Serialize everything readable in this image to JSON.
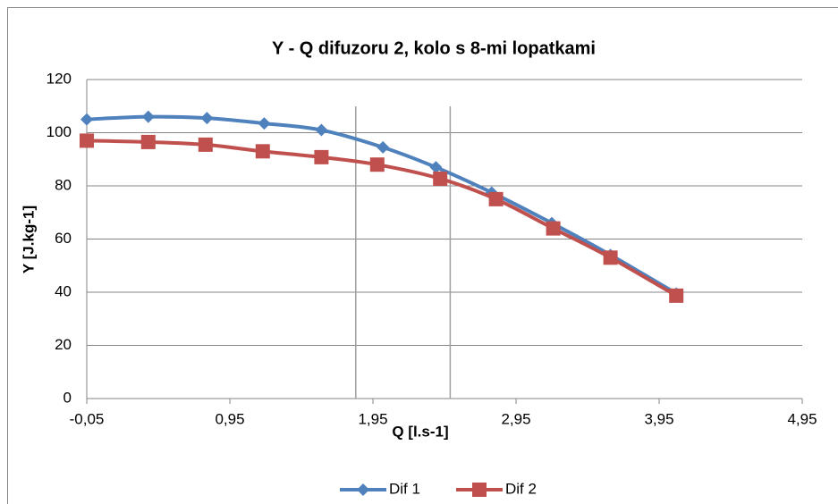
{
  "chart_data": {
    "type": "scatter",
    "title": "Y - Q difuzoru 2, kolo s 8-mi lopatkami",
    "xlabel": "Q [l.s-1]",
    "ylabel": "Y [J.kg-1]",
    "xlim": [
      -0.05,
      4.95
    ],
    "xticks": [
      {
        "value": -0.05,
        "label": "-0,05"
      },
      {
        "value": 0.95,
        "label": "0,95"
      },
      {
        "value": 1.95,
        "label": "1,95"
      },
      {
        "value": 2.95,
        "label": "2,95"
      },
      {
        "value": 3.95,
        "label": "3,95"
      },
      {
        "value": 4.95,
        "label": "4,95"
      }
    ],
    "ylim": [
      0,
      120
    ],
    "yticks": [
      0,
      20,
      40,
      60,
      80,
      100,
      120
    ],
    "grid": true,
    "reference_lines_x": [
      1.83,
      2.49
    ],
    "legend": "bottom",
    "series": [
      {
        "name": "Dif 1",
        "color": "#4f81bd",
        "marker": "diamond",
        "x": [
          -0.05,
          0.38,
          0.79,
          1.19,
          1.59,
          2.02,
          2.39,
          2.78,
          3.2,
          3.61,
          4.07
        ],
        "values": [
          105,
          106,
          105.5,
          103.5,
          101,
          94.5,
          87,
          77.5,
          66,
          54,
          39.5
        ]
      },
      {
        "name": "Dif 2",
        "color": "#c0504d",
        "marker": "square",
        "x": [
          -0.05,
          0.38,
          0.78,
          1.18,
          1.59,
          1.98,
          2.42,
          2.81,
          3.21,
          3.61,
          4.07
        ],
        "values": [
          97,
          96.5,
          95.5,
          93,
          90.8,
          88,
          82.7,
          75,
          64,
          53,
          38.7
        ]
      }
    ]
  }
}
